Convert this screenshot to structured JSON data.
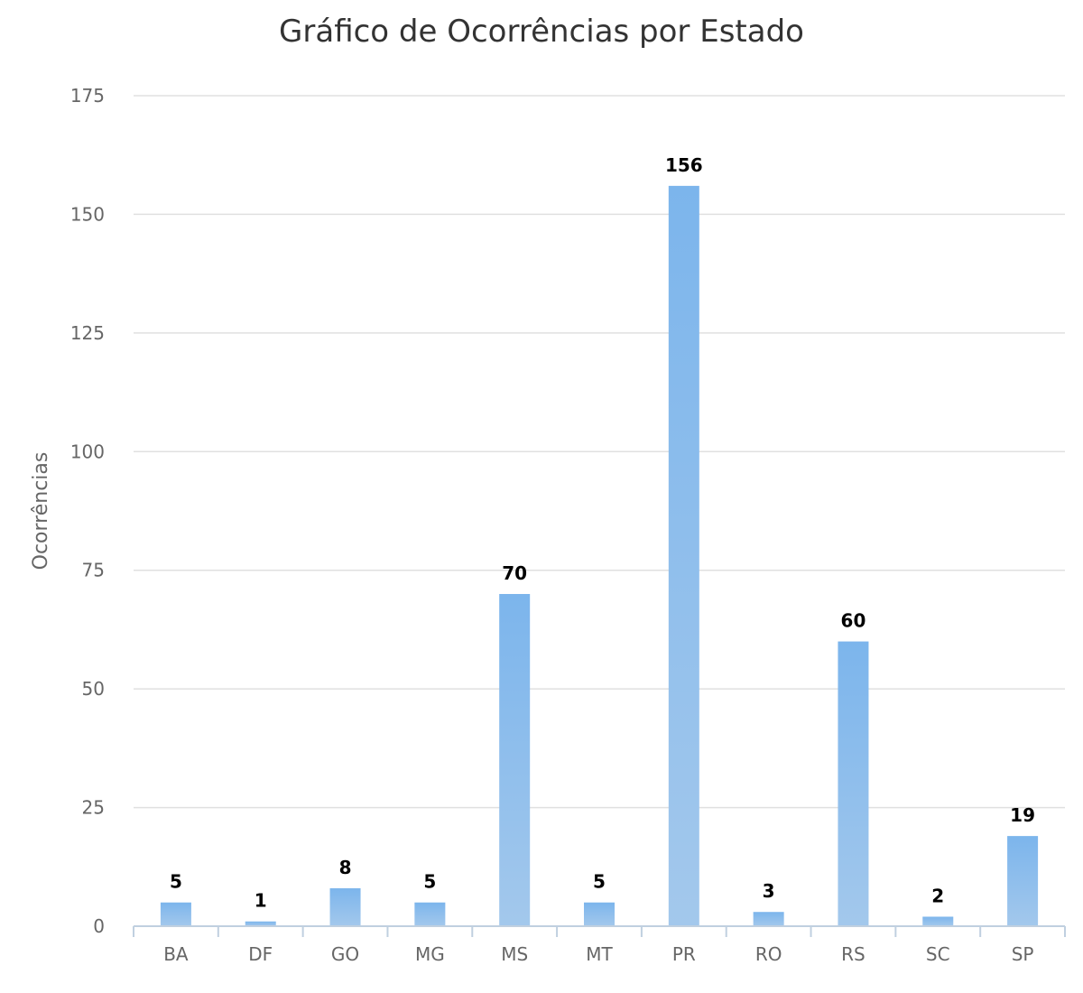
{
  "chart_data": {
    "type": "bar",
    "title": "Gráfico de Ocorrências por Estado",
    "xlabel": "",
    "ylabel": "Ocorrências",
    "categories": [
      "BA",
      "DF",
      "GO",
      "MG",
      "MS",
      "MT",
      "PR",
      "RO",
      "RS",
      "SC",
      "SP"
    ],
    "values": [
      5,
      1,
      8,
      5,
      70,
      5,
      156,
      3,
      60,
      2,
      19
    ],
    "ylim": [
      0,
      175
    ],
    "yticks": [
      0,
      25,
      50,
      75,
      100,
      125,
      150,
      175
    ],
    "grid": true,
    "legend": "none",
    "colors": {
      "bar_top": "#7cb5ec",
      "bar_bottom": "#a3c8ec",
      "grid": "#e0e0e0",
      "axis": "#c0d0e0"
    }
  }
}
